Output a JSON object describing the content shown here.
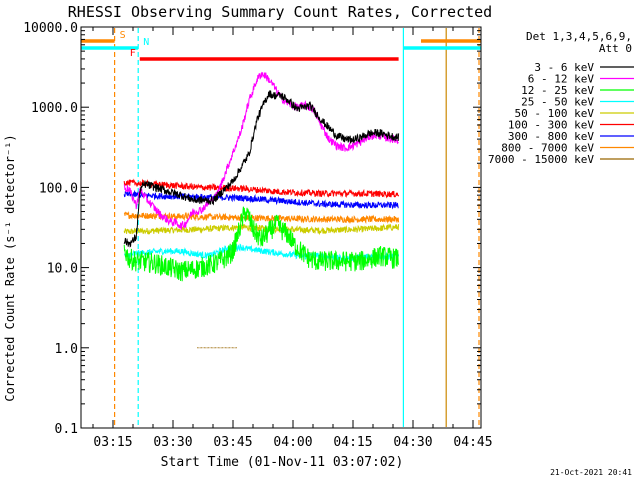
{
  "chart_data": {
    "type": "line",
    "title": "RHESSI Observing Summary Count Rates, Corrected",
    "xlabel": "Start Time (01-Nov-11 03:07:02)",
    "ylabel": "Corrected Count Rate (s⁻¹ detector⁻¹)",
    "yscale": "log",
    "ylim": [
      0.1,
      10000
    ],
    "xlim_minutes": [
      0,
      100
    ],
    "y_ticks": [
      {
        "value": 10000,
        "label": "10000.0"
      },
      {
        "value": 1000,
        "label": "1000.0"
      },
      {
        "value": 100,
        "label": "100.0"
      },
      {
        "value": 10,
        "label": "10.0"
      },
      {
        "value": 1,
        "label": "1.0"
      },
      {
        "value": 0.1,
        "label": "0.1"
      }
    ],
    "x_ticks": [
      {
        "minute": 8,
        "label": "03:15"
      },
      {
        "minute": 23,
        "label": "03:30"
      },
      {
        "minute": 38,
        "label": "03:45"
      },
      {
        "minute": 53,
        "label": "04:00"
      },
      {
        "minute": 68,
        "label": "04:15"
      },
      {
        "minute": 83,
        "label": "04:30"
      },
      {
        "minute": 98,
        "label": "04:45"
      }
    ],
    "legend": {
      "header": [
        "Det 1,3,4,5,6,9,",
        "Att 0"
      ],
      "placement": "right"
    },
    "series": [
      {
        "name": "3 - 6 keV",
        "color": "#000000",
        "x": [
          10.8,
          11.8,
          12.8,
          13.8,
          14.8,
          16,
          20,
          25,
          28,
          33,
          38,
          42,
          44,
          46,
          47,
          48,
          50,
          52,
          54,
          56,
          57,
          58,
          60,
          62,
          64,
          66,
          68,
          70,
          72,
          74,
          76,
          78,
          79.4
        ],
        "values": [
          22,
          20,
          21,
          24,
          95,
          110,
          95,
          80,
          70,
          68,
          120,
          260,
          700,
          1200,
          1500,
          1400,
          1400,
          1200,
          950,
          1000,
          1050,
          950,
          700,
          550,
          440,
          400,
          390,
          420,
          470,
          480,
          460,
          430,
          420
        ]
      },
      {
        "name": "6 - 12 keV",
        "color": "#ff00ff",
        "x": [
          10.8,
          12,
          13.8,
          14.8,
          16,
          20,
          22,
          24,
          25,
          26,
          28,
          30,
          34,
          37,
          40,
          42,
          44,
          45,
          46,
          47,
          48,
          50,
          52,
          54,
          56,
          58,
          60,
          62,
          64,
          66,
          68,
          70,
          72,
          74,
          76,
          78,
          79.4
        ],
        "values": [
          100,
          95,
          60,
          95,
          75,
          45,
          38,
          36,
          33,
          35,
          50,
          52,
          80,
          200,
          500,
          1200,
          2200,
          2600,
          2500,
          2200,
          1900,
          1300,
          1100,
          1000,
          1050,
          950,
          600,
          400,
          330,
          310,
          330,
          370,
          430,
          450,
          420,
          400,
          380
        ]
      },
      {
        "name": "12 - 25 keV",
        "color": "#00ff00",
        "x": [
          10.8,
          12,
          14,
          18,
          22,
          25,
          28,
          30,
          33,
          36,
          38,
          40,
          41,
          42,
          43,
          45,
          47,
          49,
          50,
          52,
          53,
          55,
          57,
          59,
          62,
          66,
          70,
          75,
          78,
          79.4
        ],
        "values": [
          17,
          13,
          12,
          11.5,
          10,
          9,
          9.5,
          10,
          11,
          13,
          16,
          35,
          50,
          42,
          30,
          22,
          28,
          35,
          30,
          25,
          20,
          16,
          13,
          12,
          12,
          12,
          12,
          14,
          13,
          13
        ]
      },
      {
        "name": "25 - 50 keV",
        "color": "#00ffff",
        "x": [
          10.8,
          14,
          20,
          25,
          28,
          32,
          36,
          38,
          40,
          42,
          46,
          50,
          55,
          60,
          65,
          70,
          75,
          79.4
        ],
        "values": [
          14,
          15,
          16,
          16,
          15,
          14,
          17,
          18,
          18,
          17,
          16,
          15,
          14,
          14,
          13,
          13.5,
          14,
          13.5
        ]
      },
      {
        "name": "50 - 100 keV",
        "color": "#cccc00",
        "x": [
          10.8,
          20,
          30,
          40,
          50,
          60,
          70,
          79.4
        ],
        "values": [
          28,
          29,
          30,
          32,
          30,
          29,
          30,
          32
        ]
      },
      {
        "name": "100 - 300 keV",
        "color": "#ff0000",
        "x": [
          10.8,
          20,
          30,
          40,
          50,
          60,
          70,
          79.4
        ],
        "values": [
          115,
          108,
          100,
          97,
          88,
          84,
          84,
          82
        ]
      },
      {
        "name": "300 - 800 keV",
        "color": "#0000ff",
        "x": [
          10.8,
          20,
          30,
          40,
          50,
          60,
          70,
          79.4
        ],
        "values": [
          82,
          78,
          76,
          74,
          68,
          62,
          60,
          60
        ]
      },
      {
        "name": "800 - 7000 keV",
        "color": "#ff8800",
        "x": [
          10.8,
          20,
          30,
          40,
          50,
          60,
          70,
          79.4
        ],
        "values": [
          45,
          44,
          43,
          42,
          41,
          40,
          40,
          40
        ]
      },
      {
        "name": "7000 - 15000 keV",
        "color": "#996600",
        "x": [
          29,
          30,
          33,
          36,
          39
        ],
        "values": [
          1,
          1,
          1,
          1,
          1
        ]
      }
    ],
    "flags": {
      "S": {
        "label": "S",
        "color": "#ff8800",
        "segments": [
          [
            0,
            8.4
          ],
          [
            85,
            100
          ]
        ]
      },
      "N": {
        "label": "N",
        "color": "#00ffff",
        "segments": [
          [
            0,
            14.3
          ],
          [
            80.6,
            100
          ]
        ]
      },
      "F": {
        "label": "F",
        "color": "#ff0000",
        "segments": [
          [
            14.7,
            79.4
          ]
        ]
      }
    },
    "markers": [
      {
        "minute": 8.4,
        "color": "#ff8800",
        "style": "dashed"
      },
      {
        "minute": 14.3,
        "color": "#00ffff",
        "style": "dashed"
      },
      {
        "minute": 80.6,
        "color": "#00ffff",
        "style": "solid"
      },
      {
        "minute": 91.3,
        "color": "#cc8800",
        "style": "solid"
      },
      {
        "minute": 99.5,
        "color": "#ff8800",
        "style": "dashed"
      }
    ]
  },
  "footer": {
    "timestamp": "21-Oct-2021 20:41"
  }
}
